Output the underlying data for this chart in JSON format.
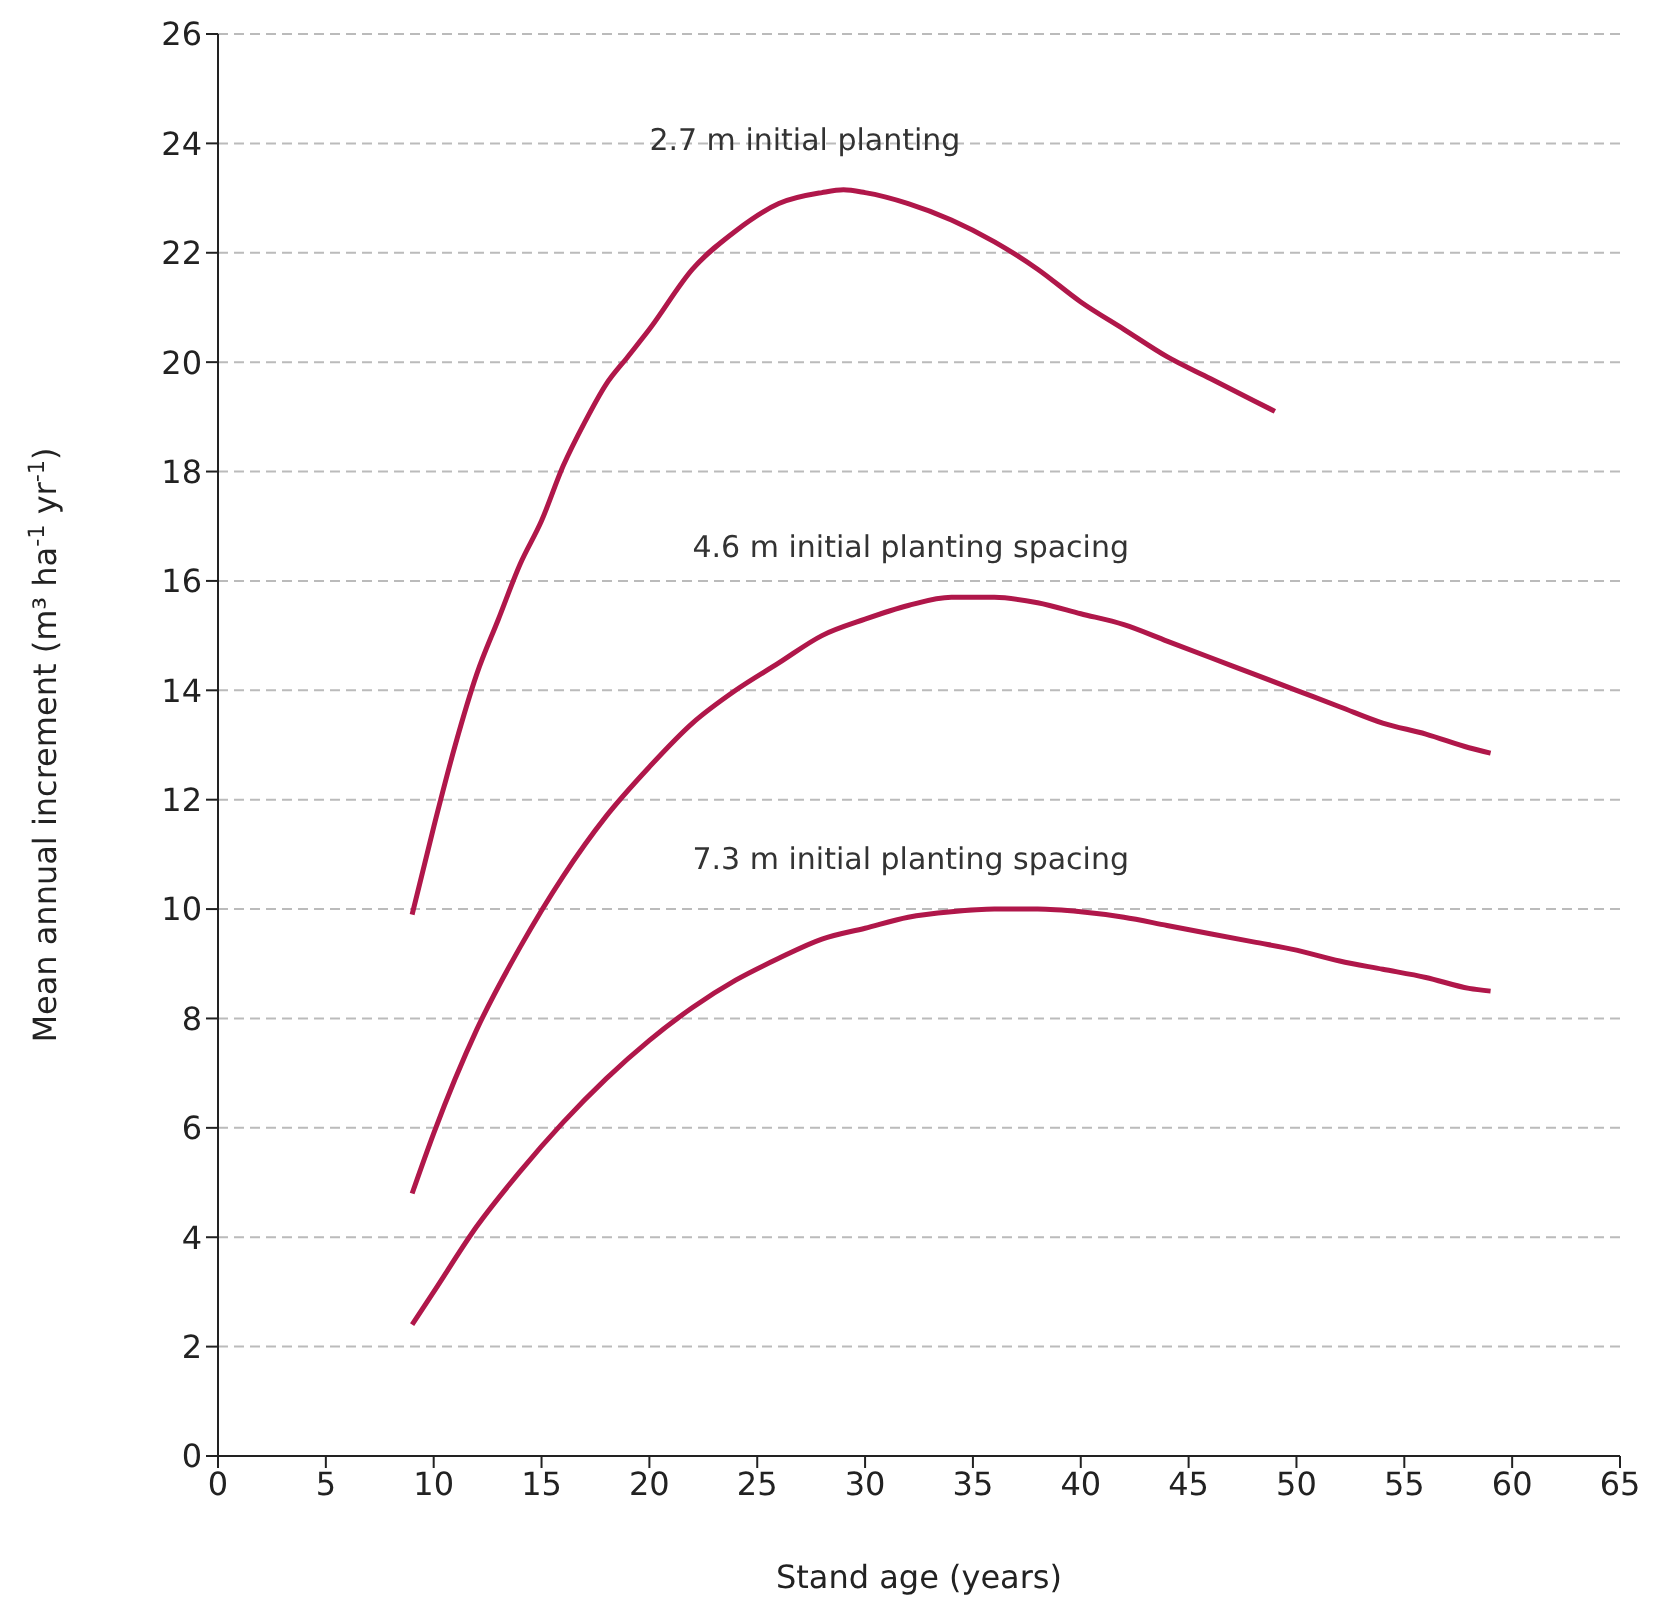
{
  "chart_data": {
    "type": "line",
    "xlabel": "Stand age (years)",
    "ylabel": "Mean annual increment (m³ ha$^{-1}$ yr$^{-1}$)",
    "xlim": [
      0,
      65
    ],
    "xticks": [
      0,
      5,
      10,
      15,
      20,
      25,
      30,
      35,
      40,
      45,
      50,
      55,
      60,
      65
    ],
    "ylim": [
      0,
      26
    ],
    "yticks": [
      0,
      2,
      4,
      6,
      8,
      10,
      12,
      14,
      16,
      18,
      20,
      22,
      24,
      26
    ],
    "grid": "y",
    "marker": "none",
    "line_style": "solid",
    "series": [
      {
        "name": "2.7 m initial planting",
        "color": "#b0174a",
        "x": [
          9,
          10,
          11,
          12,
          13,
          14,
          15,
          16,
          17,
          18,
          19,
          20,
          22,
          24,
          26,
          28,
          29,
          30,
          32,
          34,
          36,
          38,
          40,
          42,
          44,
          46,
          48,
          49
        ],
        "values": [
          9.9,
          11.5,
          13.0,
          14.3,
          15.3,
          16.3,
          17.1,
          18.1,
          18.9,
          19.6,
          20.1,
          20.6,
          21.7,
          22.4,
          22.9,
          23.1,
          23.15,
          23.1,
          22.9,
          22.6,
          22.2,
          21.7,
          21.1,
          20.6,
          20.1,
          19.7,
          19.3,
          19.1
        ]
      },
      {
        "name": "4.6 m initial planting spacing",
        "color": "#b0174a",
        "x": [
          9,
          10,
          12,
          14,
          16,
          18,
          20,
          22,
          24,
          26,
          28,
          30,
          32,
          34,
          36,
          38,
          40,
          42,
          44,
          46,
          48,
          50,
          52,
          54,
          56,
          58,
          59
        ],
        "values": [
          4.8,
          5.9,
          7.8,
          9.3,
          10.6,
          11.7,
          12.6,
          13.4,
          14.0,
          14.5,
          15.0,
          15.3,
          15.55,
          15.7,
          15.7,
          15.6,
          15.4,
          15.2,
          14.9,
          14.6,
          14.3,
          14.0,
          13.7,
          13.4,
          13.2,
          12.95,
          12.85
        ]
      },
      {
        "name": "7.3 m initial planting spacing",
        "color": "#b0174a",
        "x": [
          9,
          10,
          12,
          14,
          16,
          18,
          20,
          22,
          24,
          26,
          28,
          30,
          32,
          34,
          36,
          38,
          40,
          42,
          44,
          46,
          48,
          50,
          52,
          54,
          56,
          58,
          59
        ],
        "values": [
          2.4,
          3.0,
          4.2,
          5.2,
          6.1,
          6.9,
          7.6,
          8.2,
          8.7,
          9.1,
          9.45,
          9.65,
          9.85,
          9.95,
          10.0,
          10.0,
          9.95,
          9.85,
          9.7,
          9.55,
          9.4,
          9.25,
          9.05,
          8.9,
          8.75,
          8.55,
          8.5
        ]
      }
    ]
  }
}
